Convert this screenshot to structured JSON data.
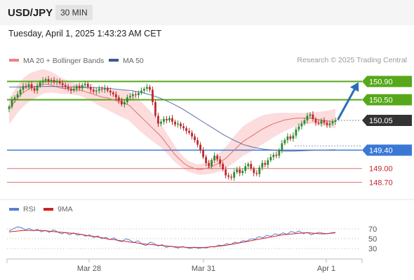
{
  "header": {
    "symbol": "USD/JPY",
    "timeframe": "30 MIN",
    "datetime": "Tuesday, April 1, 2025 1:43:23 AM CET"
  },
  "legend": {
    "ma20_label": "MA 20 + Bollinger Bands",
    "ma50_label": "MA 50",
    "credit": "Research © 2025 Trading Central"
  },
  "rsi_legend": {
    "rsi_label": "RSI",
    "ma_label": "9MA"
  },
  "colors": {
    "candle_up": "#2e8b2e",
    "candle_down": "#c0282d",
    "band_fill": "#fbd0d0",
    "ma20": "#e07070",
    "ma50": "#5b6ea8",
    "resistance": "#56a81a",
    "pivot": "#3a78d6",
    "support": "#e07070",
    "current": "#333333",
    "arrow": "#2a6fb5",
    "rsi": "#5b7fd0",
    "rsi_ma": "#d42020"
  },
  "chart_data": [
    {
      "type": "candlestick",
      "title": "USD/JPY 30 MIN",
      "x_ticks": [
        "Mar 28",
        "Mar 31",
        "Apr 1"
      ],
      "ylim": [
        148.4,
        151.15
      ],
      "levels": [
        {
          "value": 150.9,
          "label": "150.90",
          "kind": "resistance"
        },
        {
          "value": 150.5,
          "label": "150.50",
          "kind": "resistance"
        },
        {
          "value": 150.05,
          "label": "150.05",
          "kind": "current"
        },
        {
          "value": 149.4,
          "label": "149.40",
          "kind": "pivot"
        },
        {
          "value": 149.0,
          "label": "149.00",
          "kind": "support"
        },
        {
          "value": 148.7,
          "label": "148.70",
          "kind": "support"
        }
      ],
      "arrow": {
        "from": 150.05,
        "to": 150.9
      },
      "close_path": [
        150.35,
        150.5,
        150.55,
        150.62,
        150.72,
        150.8,
        150.78,
        150.84,
        150.75,
        150.7,
        150.8,
        150.88,
        150.92,
        150.95,
        150.9,
        150.93,
        150.88,
        150.9,
        150.86,
        150.82,
        150.78,
        150.74,
        150.7,
        150.74,
        150.8,
        150.75,
        150.82,
        150.85,
        150.78,
        150.72,
        150.68,
        150.7,
        150.74,
        150.72,
        150.76,
        150.7,
        150.66,
        150.62,
        150.55,
        150.48,
        150.4,
        150.45,
        150.55,
        150.58,
        150.62,
        150.6,
        150.65,
        150.7,
        150.74,
        150.78,
        150.72,
        150.45,
        150.15,
        149.98,
        150.02,
        150.08,
        150.05,
        150.1,
        150.02,
        149.96,
        149.98,
        149.92,
        149.88,
        149.82,
        149.78,
        149.7,
        149.62,
        149.52,
        149.4,
        149.25,
        149.12,
        149.05,
        149.18,
        149.28,
        149.2,
        149.1,
        148.98,
        148.85,
        148.82,
        148.8,
        148.92,
        148.98,
        148.9,
        148.95,
        149.05,
        149.1,
        149.0,
        148.9,
        148.88,
        149.02,
        149.12,
        149.08,
        149.18,
        149.25,
        149.3,
        149.28,
        149.4,
        149.55,
        149.62,
        149.7,
        149.65,
        149.72,
        149.85,
        149.92,
        149.98,
        150.05,
        150.15,
        150.18,
        150.08,
        150.0,
        149.98,
        150.05,
        150.0,
        149.95,
        149.98,
        150.02,
        150.05
      ],
      "ma20_path": [
        150.3,
        150.38,
        150.46,
        150.54,
        150.6,
        150.66,
        150.7,
        150.74,
        150.76,
        150.78,
        150.8,
        150.82,
        150.84,
        150.84,
        150.83,
        150.82,
        150.8,
        150.78,
        150.76,
        150.75,
        150.74,
        150.74,
        150.73,
        150.72,
        150.72,
        150.71,
        150.7,
        150.68,
        150.66,
        150.64,
        150.62,
        150.6,
        150.58,
        150.56,
        150.55,
        150.54,
        150.52,
        150.5,
        150.48,
        150.46,
        150.44,
        150.42,
        150.4,
        150.36,
        150.3,
        150.24,
        150.18,
        150.12,
        150.06,
        150.0,
        149.94,
        149.88,
        149.82,
        149.76,
        149.7,
        149.62,
        149.54,
        149.46,
        149.38,
        149.3,
        149.24,
        149.18,
        149.12,
        149.08,
        149.04,
        149.02,
        149.0,
        148.98,
        148.98,
        148.99,
        149.0,
        149.02,
        149.04,
        149.07,
        149.1,
        149.14,
        149.18,
        149.22,
        149.28,
        149.34,
        149.4,
        149.46,
        149.52,
        149.58,
        149.62,
        149.66,
        149.7,
        149.74,
        149.78,
        149.82,
        149.86,
        149.89,
        149.92,
        149.95,
        149.98,
        150.0,
        150.02,
        150.04,
        150.06,
        150.07,
        150.08,
        150.09,
        150.1,
        150.1,
        150.1,
        150.1,
        150.1,
        150.1,
        150.09,
        150.08,
        150.07,
        150.06,
        150.05,
        150.04,
        150.03,
        150.03,
        150.03
      ],
      "ma50_path": [
        150.78,
        150.78,
        150.78,
        150.79,
        150.79,
        150.79,
        150.78,
        150.78,
        150.77,
        150.76,
        150.74,
        150.72,
        150.7,
        150.66,
        150.6,
        150.52,
        150.42,
        150.3,
        150.16,
        150.02,
        149.88,
        149.74,
        149.62,
        149.52,
        149.46,
        149.42,
        149.4,
        149.38,
        149.38,
        149.39,
        149.4,
        149.4,
        149.41
      ],
      "band_width": 0.28
    },
    {
      "type": "line",
      "title": "RSI",
      "y_ticks": [
        70,
        50,
        30
      ],
      "ylim": [
        20,
        80
      ],
      "series": [
        {
          "name": "RSI",
          "values": [
            66,
            70,
            74,
            73,
            68,
            71,
            66,
            69,
            64,
            67,
            63,
            68,
            64,
            60,
            63,
            58,
            62,
            57,
            59,
            55,
            58,
            52,
            56,
            50,
            53,
            48,
            52,
            46,
            44,
            50,
            47,
            42,
            46,
            39,
            36,
            43,
            40,
            35,
            38,
            32,
            35,
            33,
            31,
            34,
            32,
            30,
            33,
            30,
            32,
            31,
            34,
            33,
            37,
            36,
            40,
            38,
            43,
            41,
            46,
            45,
            50,
            49,
            54,
            52,
            57,
            55,
            60,
            58,
            62,
            59,
            65,
            62,
            66,
            60,
            63,
            58,
            61,
            63,
            61,
            60,
            62,
            63
          ]
        },
        {
          "name": "9MA",
          "values": [
            64,
            65,
            66,
            67,
            67,
            67,
            67,
            66,
            65,
            64,
            63,
            62,
            61,
            60,
            58,
            56,
            55,
            53,
            51,
            49,
            48,
            46,
            45,
            43,
            42,
            40,
            39,
            38,
            37,
            36,
            35,
            34,
            33,
            33,
            32,
            32,
            32,
            32,
            33,
            34,
            35,
            36,
            38,
            40,
            42,
            44,
            46,
            48,
            50,
            52,
            54,
            56,
            58,
            59,
            60,
            61,
            62,
            62,
            61,
            60,
            60,
            61,
            62
          ]
        }
      ]
    }
  ]
}
